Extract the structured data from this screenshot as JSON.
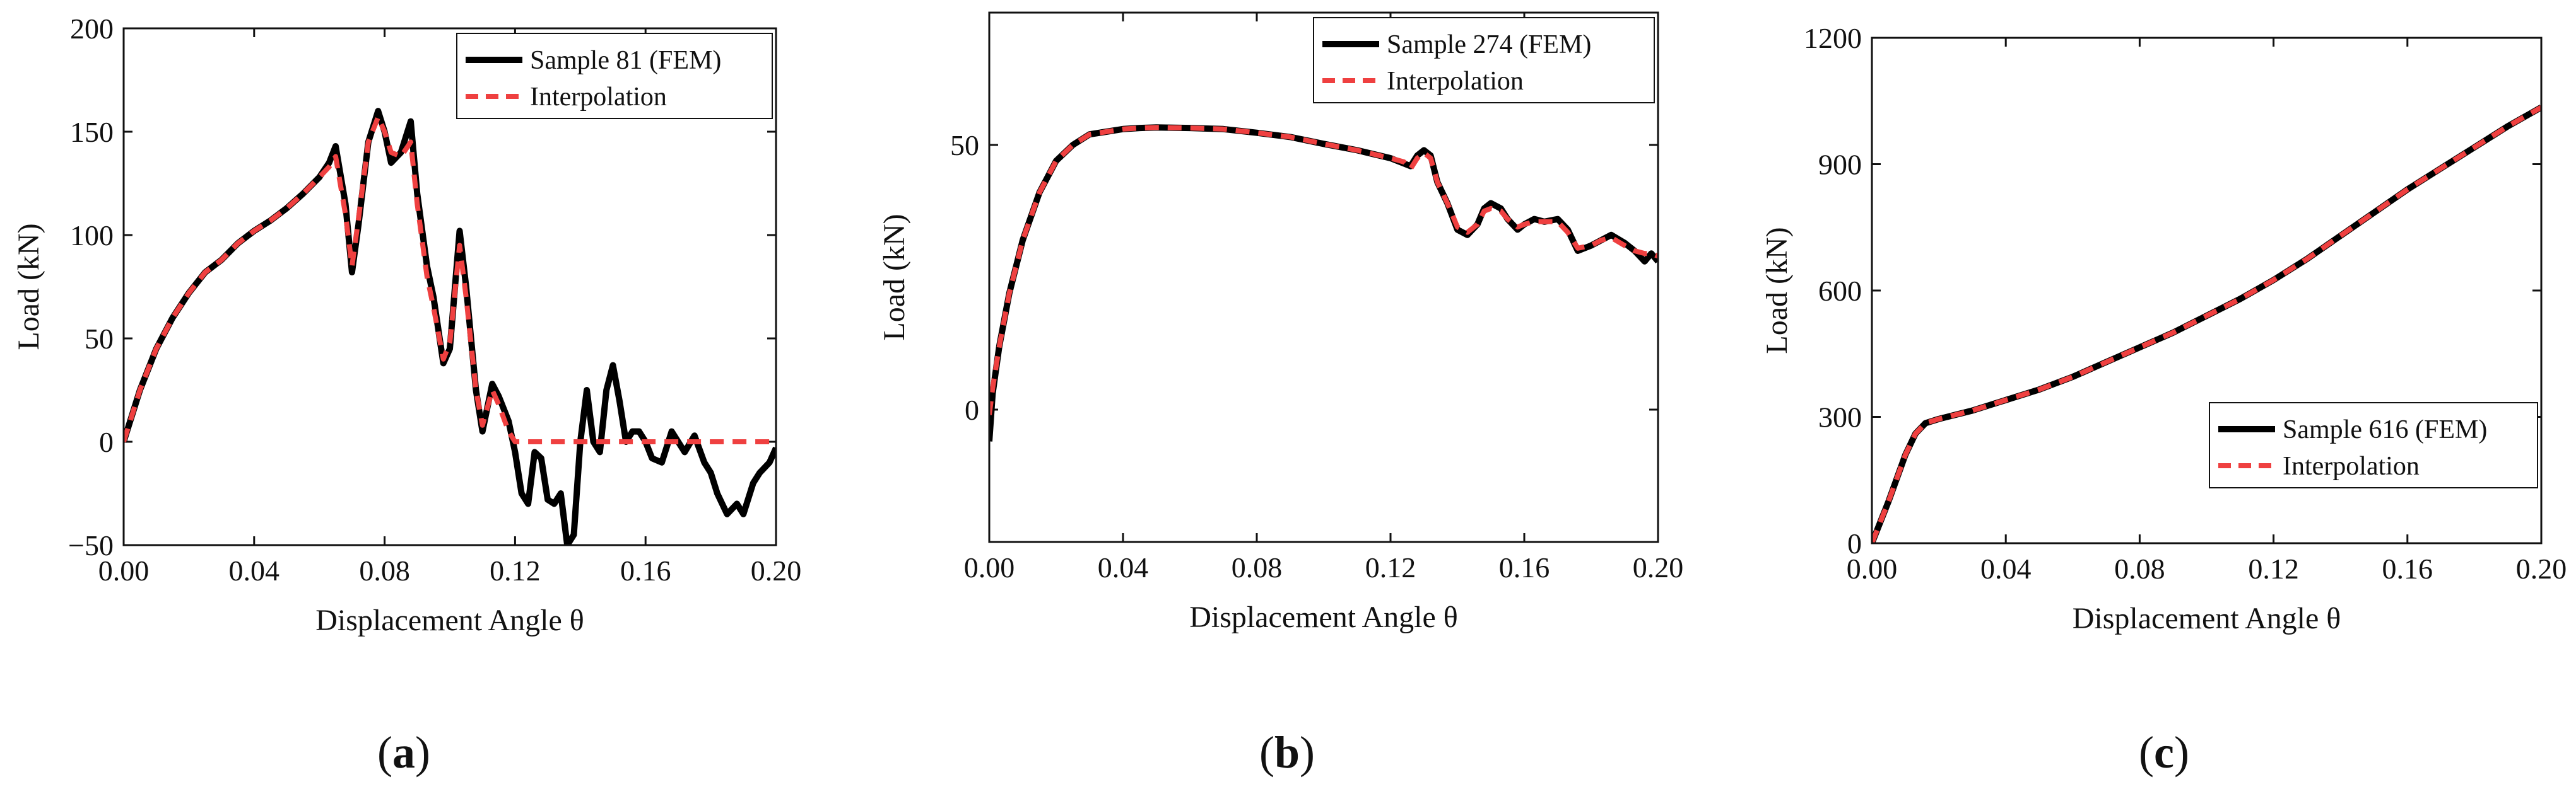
{
  "chart_data": [
    {
      "type": "line",
      "caption": "a",
      "xlabel": "Displacement Angle θ",
      "ylabel": "Load (kN)",
      "xlim": [
        0,
        0.2
      ],
      "ylim": [
        -50,
        200
      ],
      "xticks": [
        "0.00",
        "0.04",
        "0.08",
        "0.12",
        "0.16",
        "0.20"
      ],
      "yticks": [
        "−50",
        "0",
        "50",
        "100",
        "150",
        "200"
      ],
      "legend_position": "top-right",
      "colors": {
        "fem": "#000000",
        "interp": "#ef4040"
      },
      "series": [
        {
          "name": "Sample 81 (FEM)",
          "style": "solid",
          "x": [
            0,
            0.005,
            0.01,
            0.015,
            0.02,
            0.025,
            0.03,
            0.035,
            0.04,
            0.045,
            0.05,
            0.055,
            0.06,
            0.063,
            0.065,
            0.068,
            0.07,
            0.072,
            0.075,
            0.078,
            0.08,
            0.082,
            0.085,
            0.088,
            0.09,
            0.093,
            0.095,
            0.098,
            0.1,
            0.103,
            0.105,
            0.108,
            0.11,
            0.113,
            0.115,
            0.118,
            0.12,
            0.122,
            0.124,
            0.126,
            0.128,
            0.13,
            0.132,
            0.134,
            0.136,
            0.138,
            0.14,
            0.142,
            0.144,
            0.146,
            0.148,
            0.15,
            0.152,
            0.154,
            0.156,
            0.158,
            0.16,
            0.162,
            0.165,
            0.168,
            0.17,
            0.172,
            0.175,
            0.178,
            0.18,
            0.182,
            0.185,
            0.188,
            0.19,
            0.193,
            0.195,
            0.198,
            0.2
          ],
          "y": [
            0,
            25,
            45,
            60,
            72,
            82,
            88,
            96,
            102,
            107,
            113,
            120,
            128,
            135,
            143,
            115,
            82,
            105,
            145,
            160,
            150,
            135,
            140,
            155,
            120,
            85,
            70,
            38,
            45,
            102,
            75,
            25,
            5,
            28,
            22,
            10,
            -5,
            -25,
            -30,
            -5,
            -8,
            -28,
            -30,
            -25,
            -50,
            -45,
            0,
            25,
            0,
            -5,
            25,
            37,
            20,
            0,
            5,
            5,
            0,
            -8,
            -10,
            5,
            0,
            -5,
            3,
            -10,
            -15,
            -25,
            -35,
            -30,
            -35,
            -20,
            -15,
            -10,
            -3
          ]
        },
        {
          "name": "Interpolation",
          "style": "dashed",
          "x": [
            0,
            0.005,
            0.01,
            0.015,
            0.02,
            0.025,
            0.03,
            0.035,
            0.04,
            0.045,
            0.05,
            0.055,
            0.06,
            0.063,
            0.065,
            0.068,
            0.07,
            0.072,
            0.075,
            0.078,
            0.08,
            0.082,
            0.085,
            0.088,
            0.09,
            0.093,
            0.095,
            0.098,
            0.1,
            0.103,
            0.105,
            0.108,
            0.11,
            0.113,
            0.115,
            0.118,
            0.12,
            0.13,
            0.14,
            0.15,
            0.16,
            0.17,
            0.18,
            0.19,
            0.2
          ],
          "y": [
            0,
            25,
            45,
            60,
            72,
            82,
            88,
            96,
            102,
            107,
            113,
            120,
            128,
            133,
            138,
            110,
            85,
            108,
            145,
            157,
            150,
            140,
            138,
            145,
            115,
            80,
            65,
            40,
            48,
            95,
            70,
            25,
            8,
            25,
            18,
            5,
            0,
            0,
            0,
            0,
            0,
            0,
            0,
            0,
            0
          ]
        }
      ]
    },
    {
      "type": "line",
      "caption": "b",
      "xlabel": "Displacement Angle θ",
      "ylabel": "Load (kN)",
      "xlim": [
        0,
        0.2
      ],
      "ylim": [
        -25,
        75
      ],
      "xticks": [
        "0.00",
        "0.04",
        "0.08",
        "0.12",
        "0.16",
        "0.20"
      ],
      "yticks": [
        "0",
        "50"
      ],
      "ytick_values": [
        0,
        50
      ],
      "legend_position": "top-right",
      "colors": {
        "fem": "#000000",
        "interp": "#ef4040"
      },
      "series": [
        {
          "name": "Sample 274 (FEM)",
          "style": "solid",
          "x": [
            0,
            0.001,
            0.003,
            0.006,
            0.01,
            0.015,
            0.02,
            0.025,
            0.03,
            0.035,
            0.04,
            0.045,
            0.05,
            0.06,
            0.07,
            0.08,
            0.09,
            0.1,
            0.11,
            0.12,
            0.124,
            0.126,
            0.128,
            0.13,
            0.132,
            0.134,
            0.137,
            0.14,
            0.143,
            0.146,
            0.148,
            0.15,
            0.153,
            0.155,
            0.158,
            0.16,
            0.163,
            0.166,
            0.17,
            0.173,
            0.176,
            0.18,
            0.183,
            0.186,
            0.19,
            0.193,
            0.196,
            0.198,
            0.2
          ],
          "y": [
            -6,
            3,
            12,
            22,
            32,
            41,
            47,
            50,
            52,
            52.5,
            53,
            53.2,
            53.3,
            53.2,
            53,
            52.3,
            51.5,
            50.2,
            49,
            47.5,
            46.5,
            46,
            48,
            49,
            48,
            43,
            39,
            34,
            33,
            35,
            38,
            39,
            38,
            36,
            34,
            35,
            36,
            35.5,
            36,
            34,
            30,
            31,
            32,
            33,
            31.5,
            30,
            28,
            29.5,
            28
          ]
        },
        {
          "name": "Interpolation",
          "style": "dashed",
          "x": [
            0,
            0.001,
            0.003,
            0.006,
            0.01,
            0.015,
            0.02,
            0.025,
            0.03,
            0.035,
            0.04,
            0.045,
            0.05,
            0.06,
            0.07,
            0.08,
            0.09,
            0.1,
            0.11,
            0.12,
            0.124,
            0.126,
            0.128,
            0.13,
            0.132,
            0.134,
            0.137,
            0.14,
            0.143,
            0.146,
            0.148,
            0.15,
            0.153,
            0.155,
            0.158,
            0.16,
            0.163,
            0.166,
            0.17,
            0.173,
            0.176,
            0.18,
            0.183,
            0.186,
            0.19,
            0.193,
            0.196,
            0.198,
            0.2
          ],
          "y": [
            -1,
            4,
            12,
            22,
            32,
            41,
            47,
            50,
            52,
            52.5,
            53,
            53.2,
            53.3,
            53.2,
            53,
            52.3,
            51.5,
            50.2,
            49,
            47.5,
            46.8,
            45.5,
            47.5,
            48.5,
            47.5,
            43,
            39,
            34.5,
            33.5,
            35,
            37.5,
            38,
            37.5,
            36,
            34.5,
            35,
            35.5,
            35.5,
            35.5,
            33.5,
            30.5,
            31,
            32,
            32.5,
            31,
            30,
            29.5,
            29.5,
            29
          ]
        }
      ]
    },
    {
      "type": "line",
      "caption": "c",
      "xlabel": "Displacement Angle θ",
      "ylabel": "Load (kN)",
      "xlim": [
        0,
        0.2
      ],
      "ylim": [
        0,
        1200
      ],
      "xticks": [
        "0.00",
        "0.04",
        "0.08",
        "0.12",
        "0.16",
        "0.20"
      ],
      "yticks": [
        "0",
        "300",
        "600",
        "900",
        "1200"
      ],
      "legend_position": "bottom-right",
      "colors": {
        "fem": "#000000",
        "interp": "#ef4040"
      },
      "series": [
        {
          "name": "Sample 616 (FEM)",
          "style": "solid",
          "x": [
            0,
            0.005,
            0.01,
            0.013,
            0.016,
            0.02,
            0.03,
            0.04,
            0.05,
            0.06,
            0.07,
            0.08,
            0.09,
            0.1,
            0.11,
            0.12,
            0.13,
            0.14,
            0.15,
            0.16,
            0.17,
            0.18,
            0.19,
            0.2
          ],
          "y": [
            0,
            100,
            210,
            260,
            285,
            295,
            315,
            340,
            365,
            395,
            430,
            465,
            500,
            540,
            580,
            625,
            675,
            730,
            785,
            840,
            890,
            940,
            990,
            1035
          ]
        },
        {
          "name": "Interpolation",
          "style": "dashed",
          "x": [
            0,
            0.005,
            0.01,
            0.013,
            0.016,
            0.02,
            0.03,
            0.04,
            0.05,
            0.06,
            0.07,
            0.08,
            0.09,
            0.1,
            0.11,
            0.12,
            0.13,
            0.14,
            0.15,
            0.16,
            0.17,
            0.18,
            0.19,
            0.2
          ],
          "y": [
            0,
            100,
            210,
            260,
            285,
            295,
            315,
            340,
            365,
            395,
            430,
            465,
            500,
            540,
            580,
            625,
            675,
            730,
            785,
            840,
            890,
            940,
            990,
            1035
          ]
        }
      ]
    }
  ]
}
